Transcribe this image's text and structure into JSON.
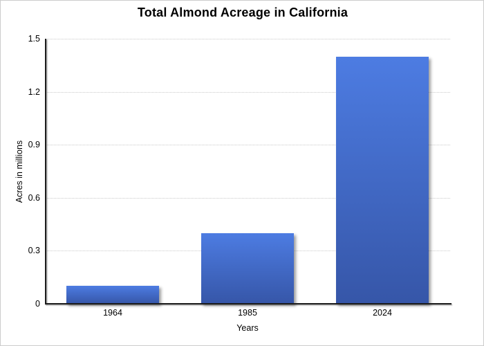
{
  "window": {
    "background": "#ffffff",
    "border_color": "#cccccc"
  },
  "chart_data": {
    "type": "bar",
    "title": "Total Almond Acreage in California",
    "categories": [
      "1964",
      "1985",
      "2024"
    ],
    "values": [
      0.1,
      0.4,
      1.4
    ],
    "xlabel": "Years",
    "ylabel": "Acres in millions",
    "ylim": [
      0,
      1.5
    ],
    "yticks": [
      0,
      0.3,
      0.6,
      0.9,
      1.2,
      1.5
    ],
    "ytick_labels": [
      "0",
      "0.3",
      "0.6",
      "0.9",
      "1.2",
      "1.5"
    ],
    "grid": "horizontal-dotted",
    "legend": "none",
    "bar_color_top": "#4d7ce2",
    "bar_color_bottom": "#3656a8",
    "axis_color": "#1c1c1c",
    "gridline_color": "#c9c9c9"
  }
}
